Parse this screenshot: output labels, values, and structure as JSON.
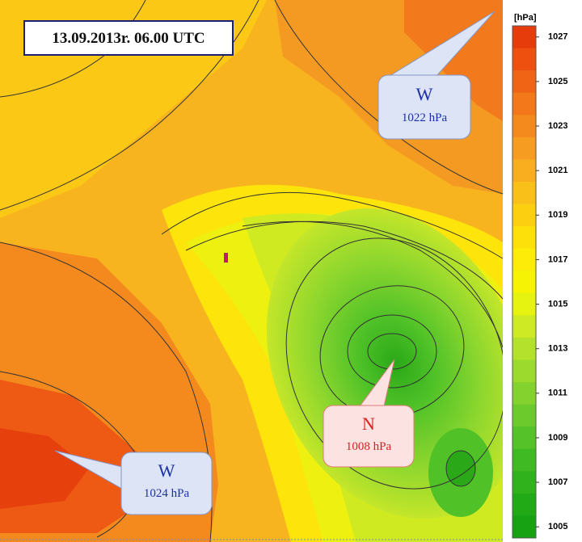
{
  "header": {
    "title": "13.09.2013r. 06.00 UTC"
  },
  "callouts": [
    {
      "label": "W",
      "pressure": "1022 hPa",
      "color": "#1c2fa8"
    },
    {
      "label": "N",
      "pressure": "1008 hPa",
      "color": "#d82020"
    },
    {
      "label": "W",
      "pressure": "1024 hPa",
      "color": "#1c2fa8"
    }
  ],
  "colorbar": {
    "unit": "[hPa]",
    "ticks": [
      1027,
      1025,
      1023,
      1021,
      1019,
      1017,
      1015,
      1013,
      1011,
      1009,
      1007,
      1005
    ],
    "colors": [
      "#e63c0c",
      "#ee5010",
      "#f06416",
      "#f2781a",
      "#f48a1e",
      "#f69c20",
      "#f8ae1e",
      "#fac01a",
      "#fcd010",
      "#fde00a",
      "#fcec08",
      "#f6f404",
      "#e6f210",
      "#cdea24",
      "#b4e22c",
      "#9cda2e",
      "#84d22e",
      "#6cca2c",
      "#54c228",
      "#40ba22",
      "#30b21c",
      "#22aa16",
      "#16a212"
    ]
  }
}
